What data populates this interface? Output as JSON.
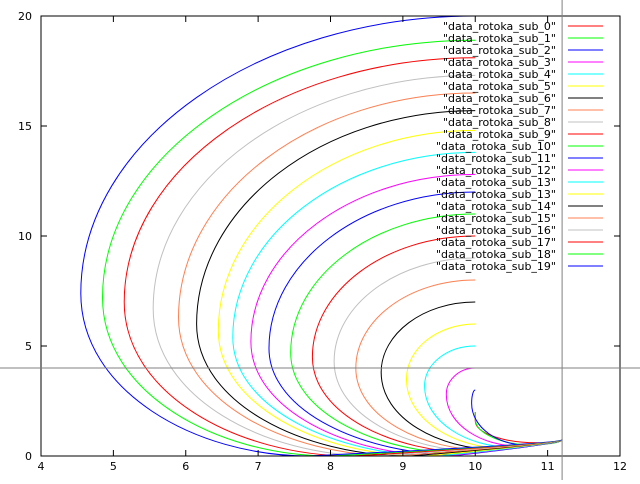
{
  "chart_data": {
    "type": "line",
    "xlim": [
      4,
      12
    ],
    "ylim": [
      0,
      20
    ],
    "x_ticks": [
      "4",
      "5",
      "6",
      "7",
      "8",
      "9",
      "10",
      "11",
      "12"
    ],
    "y_ticks": [
      "0",
      "5",
      "10",
      "15",
      "20"
    ],
    "crosshair": {
      "x": 11.2,
      "y": 4.0
    },
    "legend_placement": "top-right",
    "grid": false,
    "series": [
      {
        "name": "\"data_rotoka_sub_0\"",
        "color": "#ff0000",
        "x_start": 10.0,
        "y_start": 2.0,
        "x_min": 10.0,
        "y_at_x_min": 1.6,
        "x_end": 10.85,
        "y_end": 0.6
      },
      {
        "name": "\"data_rotoka_sub_1\"",
        "color": "#00ff00",
        "x_start": 10.0,
        "y_start": 2.0,
        "x_min": 10.0,
        "y_at_x_min": 1.7,
        "x_end": 10.8,
        "y_end": 0.5
      },
      {
        "name": "\"data_rotoka_sub_2\"",
        "color": "#0000ff",
        "x_start": 10.0,
        "y_start": 3.0,
        "x_min": 9.95,
        "y_at_x_min": 2.4,
        "x_end": 10.7,
        "y_end": 0.5
      },
      {
        "name": "\"data_rotoka_sub_3\"",
        "color": "#ff00ff",
        "x_start": 10.0,
        "y_start": 4.0,
        "x_min": 9.6,
        "y_at_x_min": 2.8,
        "x_end": 10.6,
        "y_end": 0.45
      },
      {
        "name": "\"data_rotoka_sub_4\"",
        "color": "#00ffff",
        "x_start": 10.0,
        "y_start": 5.0,
        "x_min": 9.3,
        "y_at_x_min": 3.2,
        "x_end": 10.5,
        "y_end": 0.4
      },
      {
        "name": "\"data_rotoka_sub_5\"",
        "color": "#ffff00",
        "x_start": 10.0,
        "y_start": 6.0,
        "x_min": 9.05,
        "y_at_x_min": 3.5,
        "x_end": 10.4,
        "y_end": 0.35
      },
      {
        "name": "\"data_rotoka_sub_6\"",
        "color": "#000000",
        "x_start": 10.0,
        "y_start": 7.0,
        "x_min": 8.7,
        "y_at_x_min": 3.8,
        "x_end": 10.3,
        "y_end": 0.3
      },
      {
        "name": "\"data_rotoka_sub_7\"",
        "color": "#ff7f50",
        "x_start": 10.0,
        "y_start": 8.0,
        "x_min": 8.35,
        "y_at_x_min": 4.0,
        "x_end": 10.2,
        "y_end": 0.25
      },
      {
        "name": "\"data_rotoka_sub_8\"",
        "color": "#c0c0c0",
        "x_start": 10.0,
        "y_start": 9.0,
        "x_min": 8.05,
        "y_at_x_min": 4.3,
        "x_end": 10.1,
        "y_end": 0.2
      },
      {
        "name": "\"data_rotoka_sub_9\"",
        "color": "#ff0000",
        "x_start": 10.0,
        "y_start": 10.0,
        "x_min": 7.75,
        "y_at_x_min": 4.5,
        "x_end": 10.0,
        "y_end": 0.15
      },
      {
        "name": "\"data_rotoka_sub_10\"",
        "color": "#00ff00",
        "x_start": 10.0,
        "y_start": 11.0,
        "x_min": 7.45,
        "y_at_x_min": 4.7,
        "x_end": 9.9,
        "y_end": 0.1
      },
      {
        "name": "\"data_rotoka_sub_11\"",
        "color": "#0000ff",
        "x_start": 10.0,
        "y_start": 12.0,
        "x_min": 7.15,
        "y_at_x_min": 4.9,
        "x_end": 9.8,
        "y_end": 0.05
      },
      {
        "name": "\"data_rotoka_sub_12\"",
        "color": "#ff00ff",
        "x_start": 10.0,
        "y_start": 12.8,
        "x_min": 6.9,
        "y_at_x_min": 5.2,
        "x_end": 9.6,
        "y_end": 0.0
      },
      {
        "name": "\"data_rotoka_sub_13\"",
        "color": "#00ffff",
        "x_start": 10.0,
        "y_start": 13.8,
        "x_min": 6.65,
        "y_at_x_min": 5.4,
        "x_end": 9.5,
        "y_end": 0.0
      },
      {
        "name": "\"data_rotoka_sub_13\"",
        "color": "#ffff00",
        "x_start": 10.0,
        "y_start": 14.8,
        "x_min": 6.45,
        "y_at_x_min": 5.7,
        "x_end": 9.3,
        "y_end": 0.0
      },
      {
        "name": "\"data_rotoka_sub_14\"",
        "color": "#000000",
        "x_start": 10.0,
        "y_start": 15.7,
        "x_min": 6.15,
        "y_at_x_min": 6.0,
        "x_end": 9.1,
        "y_end": 0.0
      },
      {
        "name": "\"data_rotoka_sub_15\"",
        "color": "#ff7f50",
        "x_start": 10.0,
        "y_start": 16.5,
        "x_min": 5.9,
        "y_at_x_min": 6.3,
        "x_end": 8.9,
        "y_end": 0.0
      },
      {
        "name": "\"data_rotoka_sub_16\"",
        "color": "#c0c0c0",
        "x_start": 10.0,
        "y_start": 17.3,
        "x_min": 5.55,
        "y_at_x_min": 6.7,
        "x_end": 8.6,
        "y_end": 0.0
      },
      {
        "name": "\"data_rotoka_sub_17\"",
        "color": "#ff0000",
        "x_start": 10.0,
        "y_start": 18.1,
        "x_min": 5.15,
        "y_at_x_min": 7.0,
        "x_end": 8.3,
        "y_end": 0.0
      },
      {
        "name": "\"data_rotoka_sub_18\"",
        "color": "#00ff00",
        "x_start": 10.0,
        "y_start": 18.9,
        "x_min": 4.85,
        "y_at_x_min": 7.2,
        "x_end": 8.0,
        "y_end": 0.0
      },
      {
        "name": "\"data_rotoka_sub_19\"",
        "color": "#0000ff",
        "x_start": 10.0,
        "y_start": 20.0,
        "x_min": 4.55,
        "y_at_x_min": 7.4,
        "x_end": 7.7,
        "y_end": 0.0
      }
    ]
  }
}
